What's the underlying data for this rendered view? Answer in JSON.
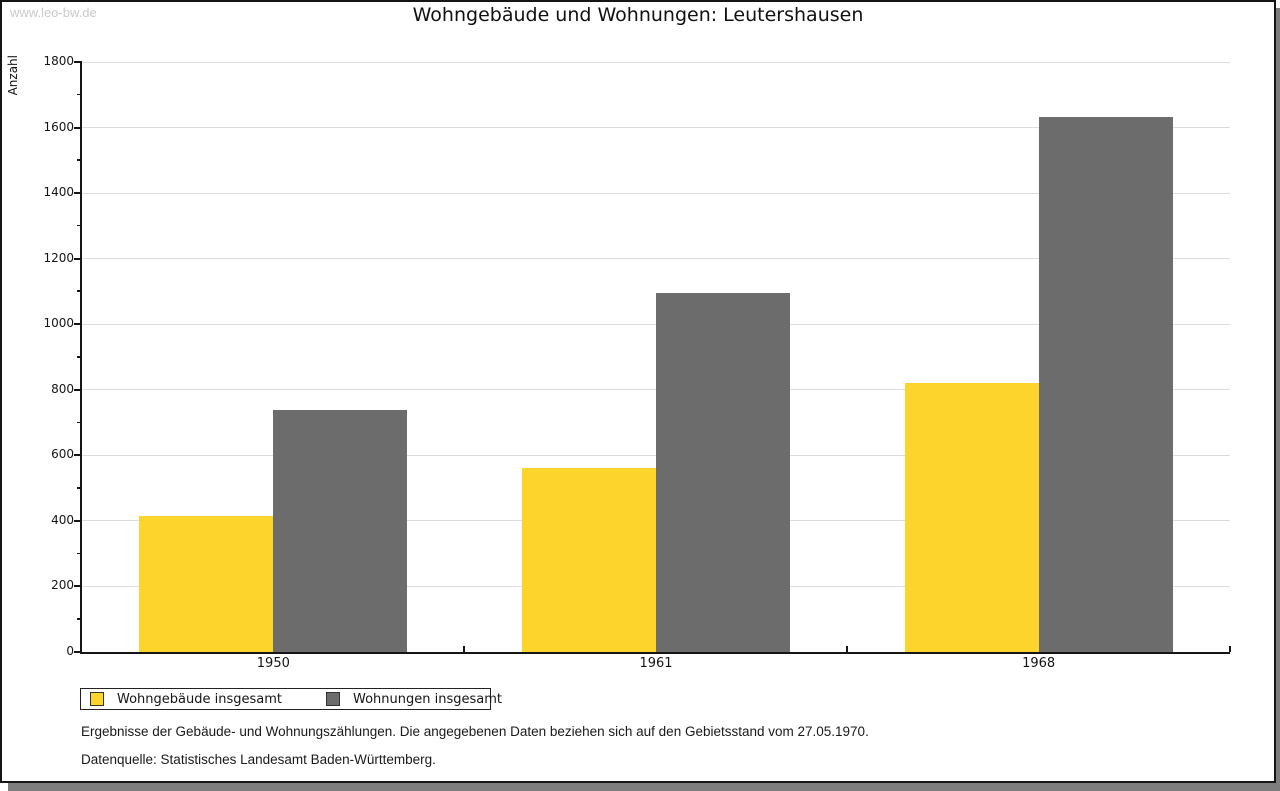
{
  "watermark": "www.leo-bw.de",
  "chart_data": {
    "type": "bar",
    "title": "Wohngebäude und Wohnungen: Leutershausen",
    "categories": [
      "1950",
      "1961",
      "1968"
    ],
    "series": [
      {
        "name": "Wohngebäude insgesamt",
        "color": "#fcd42b",
        "values": [
          416,
          562,
          822
        ]
      },
      {
        "name": "Wohnungen insgesamt",
        "color": "#6c6c6c",
        "values": [
          738,
          1095,
          1633
        ]
      }
    ],
    "xlabel": "",
    "ylabel": "Anzahl",
    "ylim": [
      0,
      1800
    ],
    "ytick_step": 200,
    "yminor_step": 100,
    "grid": true,
    "legend_position": "bottom-left",
    "gridline_color": "#dcdcdc",
    "axis_color": "#151515"
  },
  "footnotes": {
    "line1": "Ergebnisse der Gebäude- und Wohnungszählungen. Die angegebenen Daten beziehen sich auf den Gebietsstand vom 27.05.1970.",
    "line2": "Datenquelle: Statistisches Landesamt Baden-Württemberg."
  }
}
